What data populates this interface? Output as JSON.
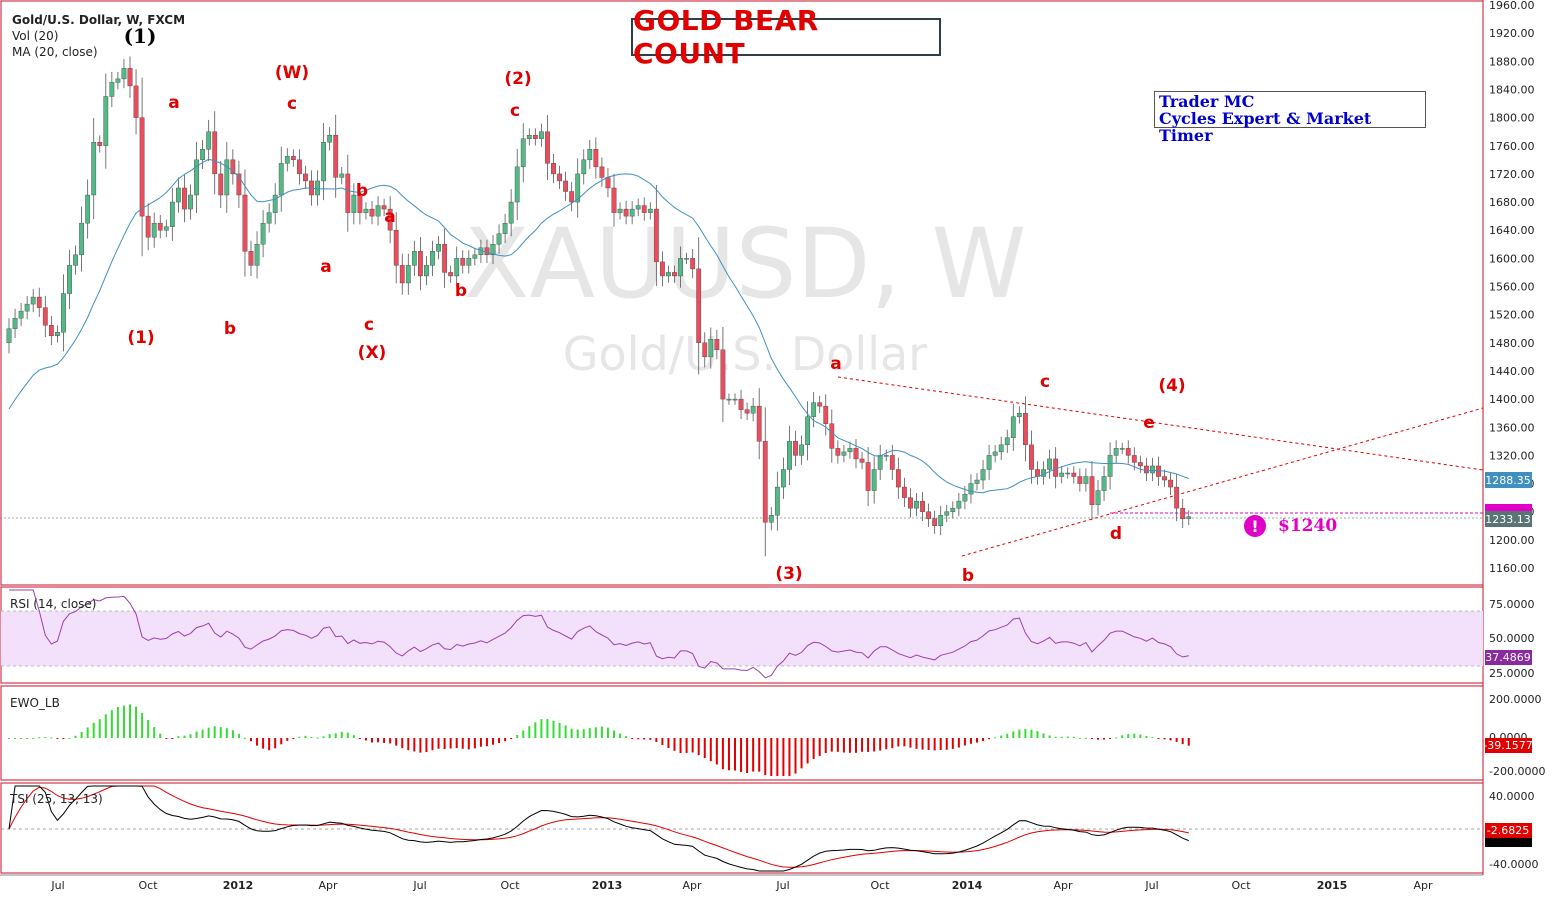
{
  "main": {
    "symbol_label": "Gold/U.S. Dollar, W, FXCM",
    "vol_label": "Vol (20)",
    "ma_label": "MA (20, close)",
    "title": "GOLD BEAR COUNT",
    "trader_line1": "Trader MC",
    "trader_line2": "Cycles Expert & Market Timer",
    "watermark_symbol": "XAUUSD, W",
    "watermark_name": "Gold/U.S. Dollar",
    "target_label": "$1240",
    "last_price_label": "1233.13",
    "ma_price_label": "1288.35",
    "colors": {
      "up": "#53b987",
      "down": "#eb4d5c",
      "ma": "#3f8fbf",
      "annotation": "#e00000",
      "target": "#e000c8"
    }
  },
  "x_axis": {
    "labels": [
      "Jul",
      "Oct",
      "2012",
      "Apr",
      "Jul",
      "Oct",
      "2013",
      "Apr",
      "Jul",
      "Oct",
      "2014",
      "Apr",
      "Jul",
      "Oct",
      "2015",
      "Apr"
    ]
  },
  "rsi": {
    "label": "RSI (14, close)",
    "value_label": "37.4869",
    "ticks": [
      "75.0000",
      "50.0000",
      "25.0000"
    ]
  },
  "ewo": {
    "label": "EWO_LB",
    "value_label": "-39.1577",
    "ticks": [
      "200.0000",
      "0.0000",
      "-200.0000"
    ]
  },
  "tsi": {
    "label": "TSI (25, 13, 13)",
    "value_label": "-2.6825",
    "ticks": [
      "40.0000",
      "0.0000",
      "-40.0000"
    ]
  },
  "chart_data": {
    "type": "candlestick",
    "x_start": "2011-06",
    "price_ticks": [
      1960,
      1920,
      1880,
      1840,
      1800,
      1760,
      1720,
      1680,
      1640,
      1600,
      1560,
      1520,
      1480,
      1440,
      1400,
      1360,
      1320,
      1280,
      1240,
      1200,
      1160
    ],
    "ylim": [
      1135,
      1965
    ],
    "close": [
      1500,
      1515,
      1525,
      1535,
      1545,
      1530,
      1505,
      1490,
      1495,
      1550,
      1590,
      1605,
      1650,
      1690,
      1765,
      1760,
      1830,
      1850,
      1855,
      1870,
      1845,
      1800,
      1660,
      1630,
      1650,
      1640,
      1645,
      1680,
      1700,
      1670,
      1690,
      1740,
      1755,
      1780,
      1720,
      1690,
      1740,
      1720,
      1690,
      1610,
      1590,
      1620,
      1650,
      1665,
      1690,
      1735,
      1745,
      1740,
      1720,
      1710,
      1690,
      1710,
      1765,
      1775,
      1715,
      1720,
      1665,
      1690,
      1665,
      1670,
      1660,
      1675,
      1670,
      1640,
      1590,
      1565,
      1590,
      1610,
      1575,
      1590,
      1610,
      1620,
      1580,
      1575,
      1600,
      1590,
      1600,
      1605,
      1615,
      1605,
      1620,
      1635,
      1650,
      1680,
      1730,
      1770,
      1775,
      1770,
      1780,
      1735,
      1720,
      1710,
      1695,
      1680,
      1720,
      1740,
      1755,
      1730,
      1715,
      1700,
      1665,
      1670,
      1660,
      1670,
      1675,
      1665,
      1670,
      1595,
      1575,
      1580,
      1575,
      1600,
      1600,
      1585,
      1480,
      1460,
      1485,
      1470,
      1400,
      1400,
      1400,
      1385,
      1380,
      1390,
      1340,
      1225,
      1235,
      1275,
      1300,
      1340,
      1320,
      1335,
      1375,
      1395,
      1390,
      1365,
      1330,
      1320,
      1325,
      1330,
      1315,
      1310,
      1270,
      1300,
      1320,
      1320,
      1300,
      1275,
      1260,
      1245,
      1255,
      1240,
      1230,
      1220,
      1235,
      1240,
      1245,
      1255,
      1265,
      1280,
      1285,
      1300,
      1320,
      1325,
      1335,
      1345,
      1375,
      1380,
      1335,
      1300,
      1290,
      1300,
      1315,
      1290,
      1295,
      1295,
      1290,
      1280,
      1290,
      1250,
      1270,
      1290,
      1320,
      1330,
      1330,
      1320,
      1310,
      1305,
      1295,
      1305,
      1290,
      1285,
      1275,
      1245,
      1230,
      1233
    ]
  }
}
